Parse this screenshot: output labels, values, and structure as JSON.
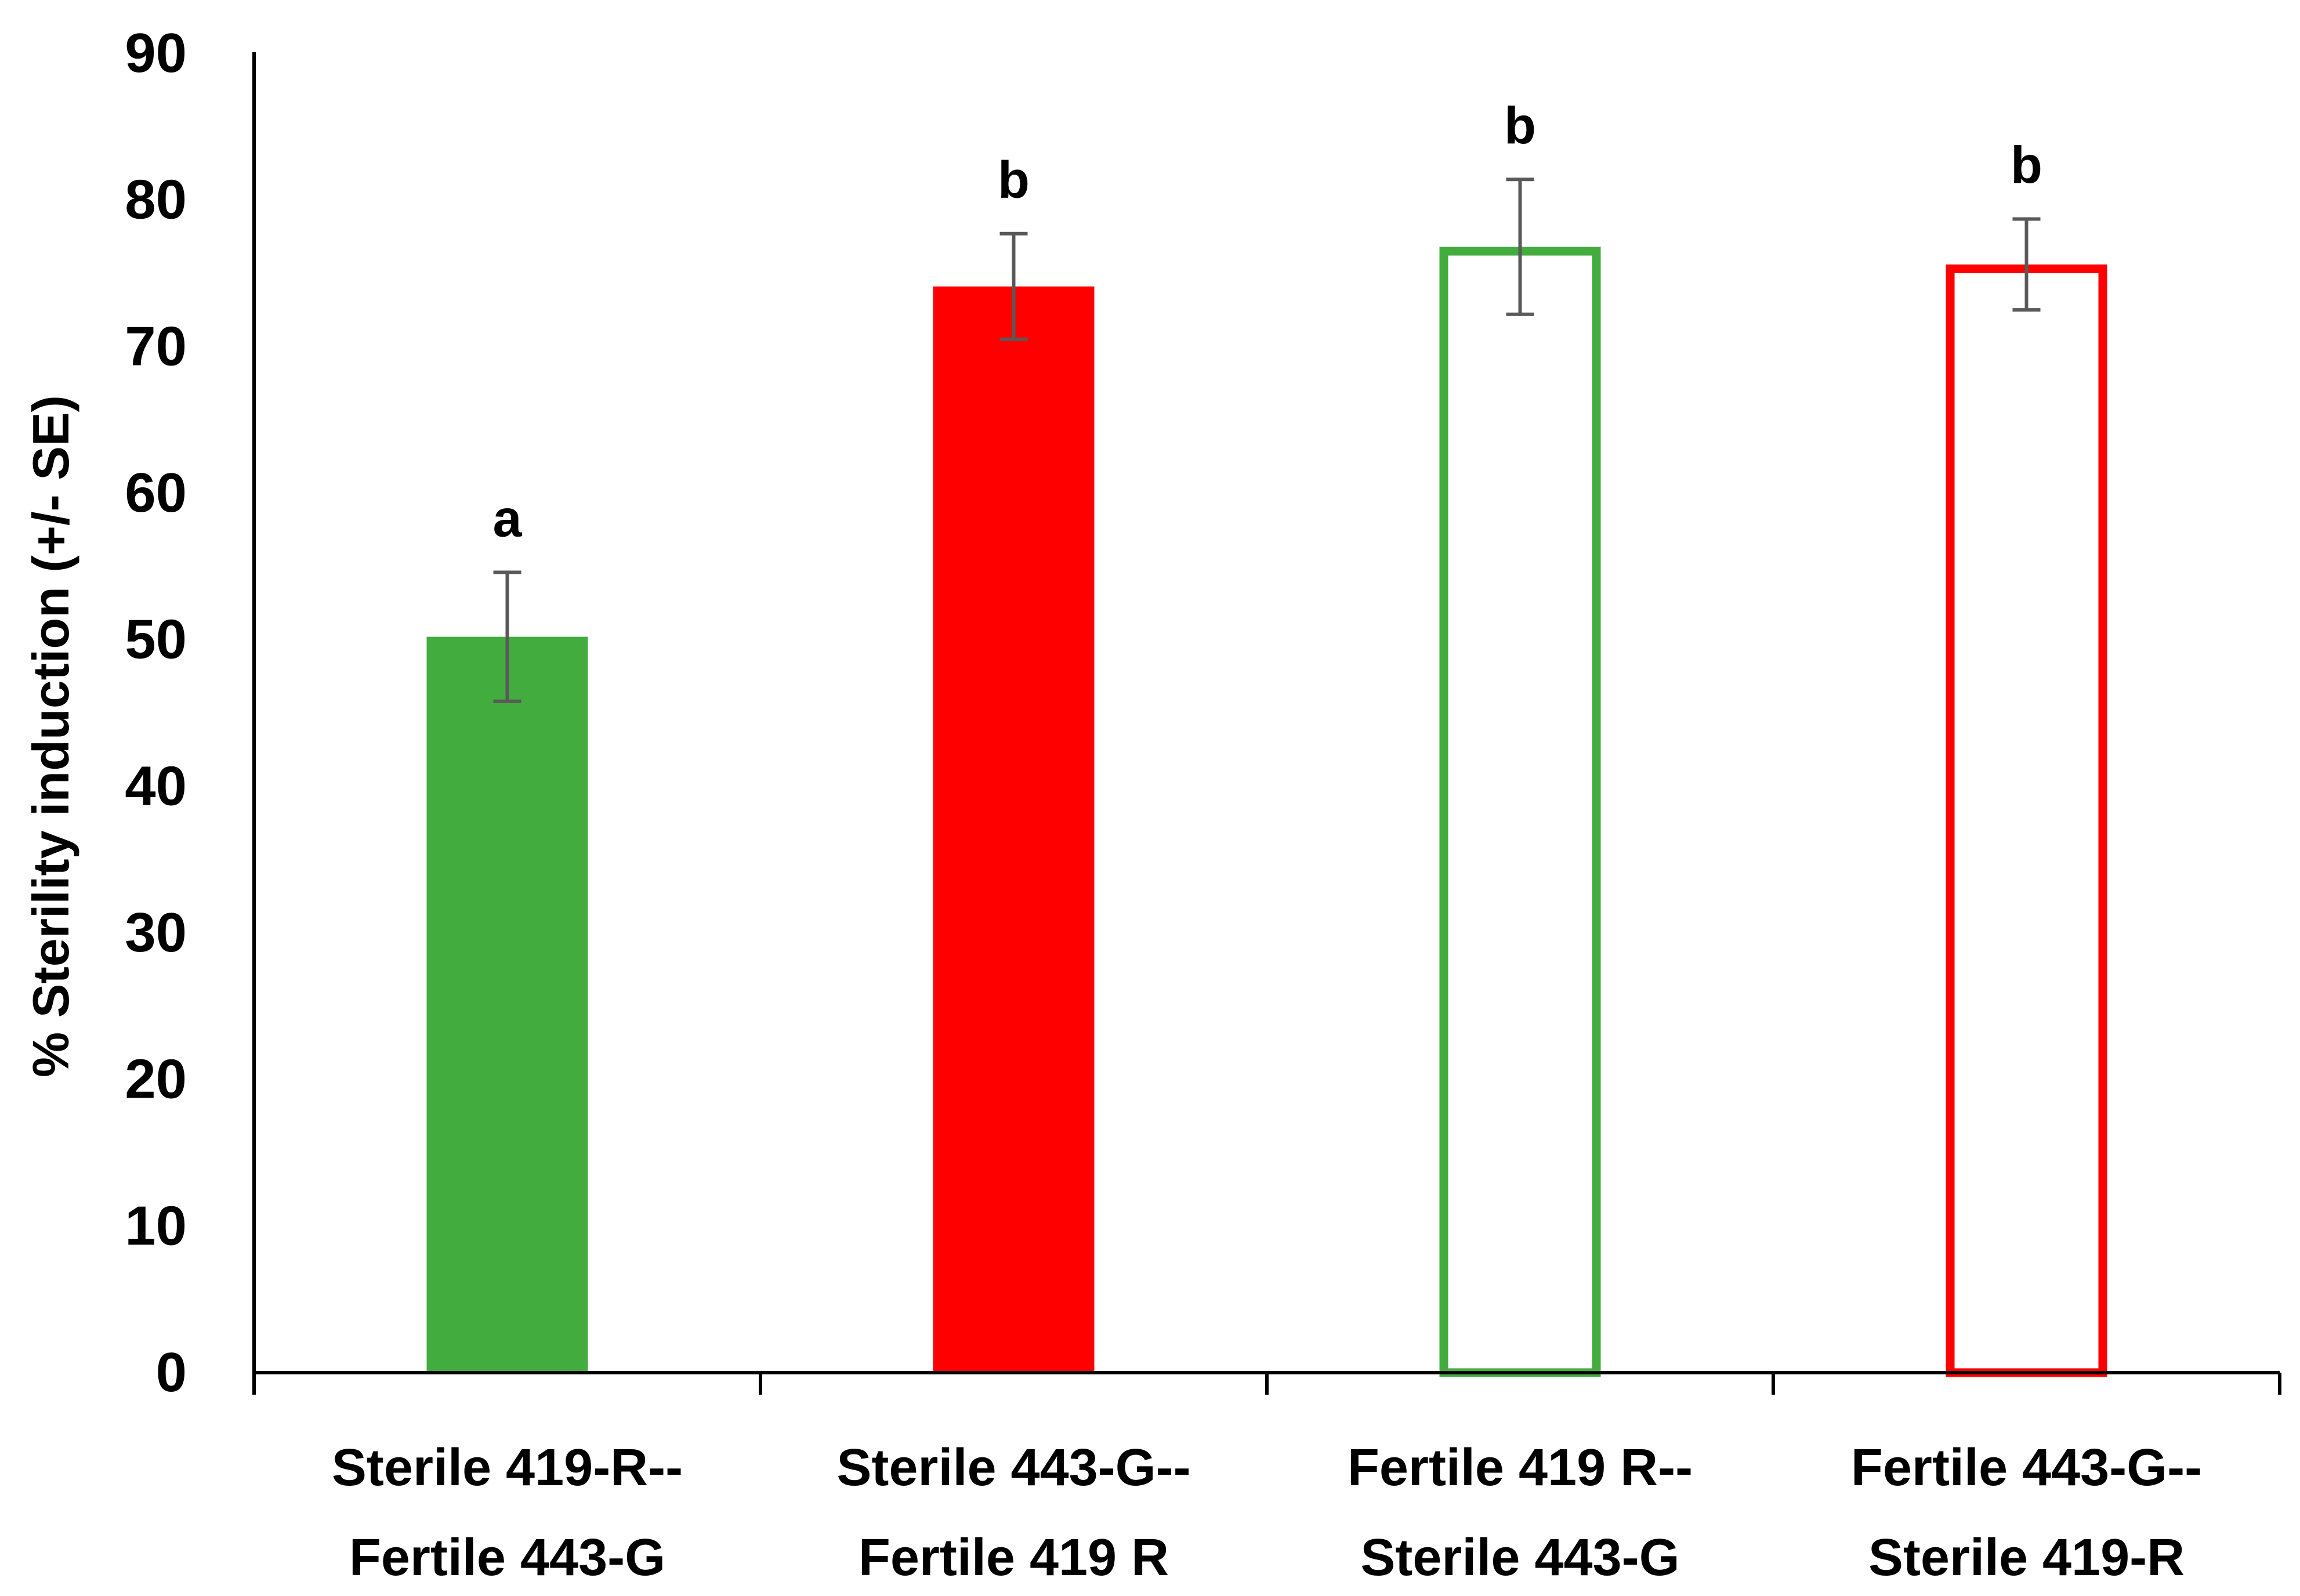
{
  "chart_data": {
    "type": "bar",
    "title": "",
    "xlabel": "",
    "ylabel": "% Sterility induction (+/- SE)",
    "ylim": [
      0,
      90
    ],
    "yticks": [
      0,
      10,
      20,
      30,
      40,
      50,
      60,
      70,
      80,
      90
    ],
    "grid": false,
    "legend": "none",
    "categories": [
      [
        "Sterile 419-R--",
        "Fertile 443-G"
      ],
      [
        "Sterile 443-G--",
        "Fertile 419 R"
      ],
      [
        "Fertile 419 R--",
        "Sterile 443-G"
      ],
      [
        "Fertile 443-G--",
        "Sterile 419-R"
      ]
    ],
    "values": [
      50.2,
      74.1,
      76.8,
      75.6
    ],
    "errors": [
      4.4,
      3.6,
      4.6,
      3.1
    ],
    "significance_letters": [
      "a",
      "b",
      "b",
      "b"
    ],
    "bar_styles": [
      {
        "fill": "#43AC3E",
        "stroke": "#43AC3E",
        "hollow": false
      },
      {
        "fill": "#FF0000",
        "stroke": "#FF0000",
        "hollow": false
      },
      {
        "fill": "#FFFFFF",
        "stroke": "#43AC3E",
        "hollow": true
      },
      {
        "fill": "#FFFFFF",
        "stroke": "#FF0000",
        "hollow": true
      }
    ],
    "error_bar_color": "#595959",
    "axis_color": "#000000"
  }
}
